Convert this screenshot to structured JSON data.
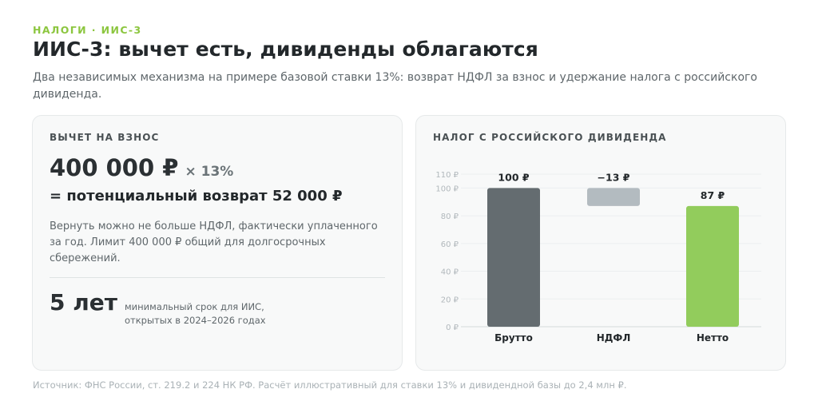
{
  "header": {
    "eyebrow": "НАЛОГИ · ИИС-3",
    "title": "ИИС-3: вычет есть, дивиденды облагаются",
    "subtitle": "Два независимых механизма на примере базовой ставки 13%: возврат НДФЛ за взнос и удержание налога с российского дивиденда."
  },
  "deduction_card": {
    "label": "ВЫЧЕТ НА ВЗНОС",
    "amount": "400 000 ₽",
    "multiplier": "× 13%",
    "result": "= потенциальный возврат 52 000 ₽",
    "note": "Вернуть можно не больше НДФЛ, фактически уплаченного за год. Лимит 400 000 ₽ общий для долгосрочных сбережений.",
    "term_value": "5 лет",
    "term_note": "минимальный срок для ИИС,\nоткрытых в 2024–2026 годах"
  },
  "dividend_card": {
    "label": "НАЛОГ С РОССИЙСКОГО ДИВИДЕНДА"
  },
  "colors": {
    "gross": "#646c70",
    "tax": "#b3bbc0",
    "net": "#92cc5c",
    "accent": "#8cc63f"
  },
  "chart_data": {
    "type": "bar",
    "subtype": "waterfall",
    "categories": [
      "Брутто",
      "НДФЛ",
      "Нетто"
    ],
    "values": [
      100,
      -13,
      87
    ],
    "data_labels": [
      "100 ₽",
      "−13 ₽",
      "87 ₽"
    ],
    "y_ticks": [
      0,
      20,
      40,
      60,
      80,
      100,
      110
    ],
    "y_tick_labels": [
      "0 ₽",
      "20 ₽",
      "40 ₽",
      "60 ₽",
      "80 ₽",
      "100 ₽",
      "110 ₽"
    ],
    "ylim": [
      0,
      110
    ],
    "grid": true,
    "legend": "none"
  },
  "footer": {
    "source": "Источник: ФНС России, ст. 219.2 и 224 НК РФ. Расчёт иллюстративный для ставки 13% и дивидендной базы до 2,4 млн ₽."
  }
}
